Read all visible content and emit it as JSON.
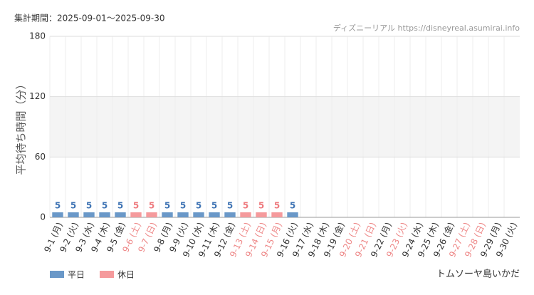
{
  "chart_data": {
    "type": "bar",
    "period": "集計期間：2025-09-01～2025-09-30",
    "source": "ディズニーリアル https://disneyreal.asumirai.info",
    "y_label": "平均待ち時間（分）",
    "attraction": "トムソーヤ島いかだ",
    "categories": [
      "9-1 (月)",
      "9-2 (火)",
      "9-3 (水)",
      "9-4 (木)",
      "9-5 (金)",
      "9-6 (土)",
      "9-7 (日)",
      "9-8 (月)",
      "9-9 (火)",
      "9-10 (水)",
      "9-11 (木)",
      "9-12 (金)",
      "9-13 (土)",
      "9-14 (日)",
      "9-15 (月)",
      "9-16 (火)",
      "9-17 (水)",
      "9-18 (木)",
      "9-19 (金)",
      "9-20 (土)",
      "9-21 (日)",
      "9-22 (月)",
      "9-23 (火)",
      "9-24 (水)",
      "9-25 (木)",
      "9-26 (金)",
      "9-27 (土)",
      "9-28 (日)",
      "9-29 (月)",
      "9-30 (火)"
    ],
    "category_label_colors": [
      "#333",
      "#333",
      "#333",
      "#333",
      "#333",
      "#e88",
      "#e88",
      "#333",
      "#333",
      "#333",
      "#333",
      "#333",
      "#e88",
      "#e88",
      "#e88",
      "#333",
      "#333",
      "#333",
      "#333",
      "#e88",
      "#e88",
      "#333",
      "#e88",
      "#333",
      "#333",
      "#333",
      "#e88",
      "#e88",
      "#333",
      "#333"
    ],
    "series": [
      {
        "name": "平日",
        "color": "#6a98c8",
        "label_color": "#3f74b4",
        "values": [
          5,
          5,
          5,
          5,
          5,
          null,
          null,
          5,
          5,
          5,
          5,
          5,
          null,
          null,
          null,
          5,
          null,
          null,
          null,
          null,
          null,
          null,
          null,
          null,
          null,
          null,
          null,
          null,
          null,
          null
        ]
      },
      {
        "name": "休日",
        "color": "#f59a9c",
        "label_color": "#ee7a7e",
        "values": [
          null,
          null,
          null,
          null,
          null,
          5,
          5,
          null,
          null,
          null,
          null,
          null,
          5,
          5,
          5,
          null,
          null,
          null,
          null,
          null,
          null,
          null,
          null,
          null,
          null,
          null,
          null,
          null,
          null,
          null
        ]
      }
    ],
    "ylim": [
      0,
      180
    ],
    "yticks": [
      0,
      60,
      120,
      180
    ],
    "shade": [
      60,
      120
    ],
    "grid": true
  }
}
